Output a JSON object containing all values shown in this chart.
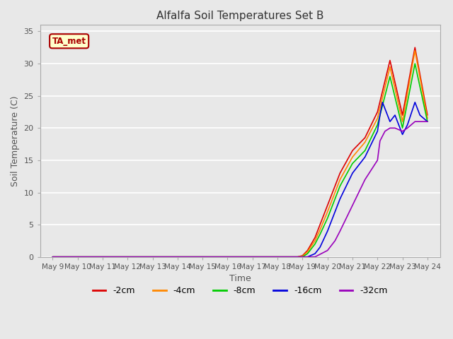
{
  "title": "Alfalfa Soil Temperatures Set B",
  "xlabel": "Time",
  "ylabel": "Soil Temperature (C)",
  "ylim": [
    0,
    36
  ],
  "yticks": [
    0,
    5,
    10,
    15,
    20,
    25,
    30,
    35
  ],
  "x_labels": [
    "May 9",
    "May 10",
    "May 11",
    "May 12",
    "May 13",
    "May 14",
    "May 15",
    "May 16",
    "May 17",
    "May 18",
    "May 19",
    "May 20",
    "May 21",
    "May 22",
    "May 23",
    "May 24"
  ],
  "annotation_text": "TA_met",
  "annotation_bg": "#ffffcc",
  "annotation_border": "#aa0000",
  "series": [
    {
      "label": "-2cm",
      "color": "#dd0000",
      "linewidth": 1.2,
      "data_x": [
        0,
        1,
        2,
        3,
        4,
        4.5,
        5,
        5.5,
        6,
        6.5,
        7,
        7.5,
        8,
        8.5,
        9,
        9.5,
        9.8,
        10,
        10.2,
        10.5,
        10.7,
        11,
        11.3,
        11.5,
        12,
        12.5,
        13,
        13.5,
        14,
        14.5,
        15
      ],
      "data_y": [
        0,
        0,
        0,
        0,
        0,
        0,
        0,
        0,
        0,
        0,
        0,
        0,
        0,
        0,
        0,
        0,
        0,
        0.2,
        1,
        3,
        5,
        8,
        11,
        13,
        16.5,
        18.5,
        22.5,
        30.5,
        22,
        32.5,
        22
      ]
    },
    {
      "label": "-4cm",
      "color": "#ff8800",
      "linewidth": 1.2,
      "data_x": [
        0,
        1,
        2,
        3,
        4,
        4.5,
        5,
        5.5,
        6,
        6.5,
        7,
        7.5,
        8,
        8.5,
        9,
        9.5,
        9.8,
        10,
        10.2,
        10.5,
        10.7,
        11,
        11.3,
        11.5,
        12,
        12.5,
        13,
        13.5,
        14,
        14.5,
        15
      ],
      "data_y": [
        0,
        0,
        0,
        0,
        0,
        0,
        0,
        0,
        0,
        0,
        0,
        0,
        0,
        0,
        0,
        0,
        0,
        0.1,
        0.8,
        2.5,
        4.2,
        7,
        10,
        12,
        15.5,
        17.8,
        21.5,
        29.5,
        21,
        32,
        21.5
      ]
    },
    {
      "label": "-8cm",
      "color": "#00cc00",
      "linewidth": 1.2,
      "data_x": [
        0,
        1,
        2,
        3,
        4,
        4.5,
        5,
        5.5,
        6,
        6.5,
        7,
        7.5,
        8,
        8.5,
        9,
        9.5,
        9.8,
        10,
        10.2,
        10.5,
        10.7,
        11,
        11.3,
        11.5,
        12,
        12.5,
        13,
        13.5,
        14,
        14.5,
        15
      ],
      "data_y": [
        0,
        0,
        0,
        0,
        0,
        0,
        0,
        0,
        0,
        0,
        0,
        0,
        0,
        0,
        0,
        0,
        0,
        0,
        0.5,
        2,
        3.5,
        6,
        9,
        11,
        14.5,
        16.5,
        20.5,
        28,
        20,
        30,
        21
      ]
    },
    {
      "label": "-16cm",
      "color": "#0000dd",
      "linewidth": 1.2,
      "data_x": [
        0,
        1,
        2,
        3,
        4,
        4.5,
        5,
        5.5,
        6,
        6.5,
        7,
        7.5,
        8,
        8.5,
        9,
        9.5,
        9.8,
        10,
        10.2,
        10.5,
        10.7,
        11,
        11.3,
        11.5,
        12,
        12.5,
        13,
        13.1,
        13.2,
        13.3,
        13.5,
        13.7,
        14,
        14.2,
        14.5,
        14.7,
        15
      ],
      "data_y": [
        0,
        0,
        0,
        0,
        0,
        0,
        0,
        0,
        0,
        0,
        0,
        0,
        0,
        0,
        0,
        0,
        0,
        0,
        0,
        0.5,
        1.5,
        4,
        7,
        9,
        13,
        15.5,
        19.5,
        22,
        24,
        23,
        21,
        22,
        19,
        20.5,
        24,
        22,
        21
      ]
    },
    {
      "label": "-32cm",
      "color": "#9900bb",
      "linewidth": 1.2,
      "data_x": [
        0,
        1,
        2,
        3,
        4,
        4.5,
        5,
        5.5,
        6,
        6.5,
        7,
        7.5,
        8,
        8.5,
        9,
        9.5,
        10,
        10.5,
        11,
        11.3,
        11.5,
        12,
        12.5,
        13,
        13.1,
        13.3,
        13.5,
        13.7,
        14,
        14.2,
        14.5,
        14.7,
        15
      ],
      "data_y": [
        0,
        0,
        0,
        0,
        0,
        0,
        0,
        0,
        0,
        0,
        0,
        0,
        0,
        0,
        0,
        0,
        0,
        0,
        1,
        2.5,
        4,
        8,
        12,
        15,
        18,
        19.5,
        20,
        20,
        19.5,
        20,
        21,
        21,
        21
      ]
    }
  ],
  "grid_color": "#ffffff",
  "plot_bg_color": "#e8e8e8",
  "fig_bg_color": "#e8e8e8",
  "legend_colors": [
    "#dd0000",
    "#ff8800",
    "#00cc00",
    "#0000dd",
    "#9900bb"
  ],
  "legend_labels": [
    "-2cm",
    "-4cm",
    "-8cm",
    "-16cm",
    "-32cm"
  ]
}
